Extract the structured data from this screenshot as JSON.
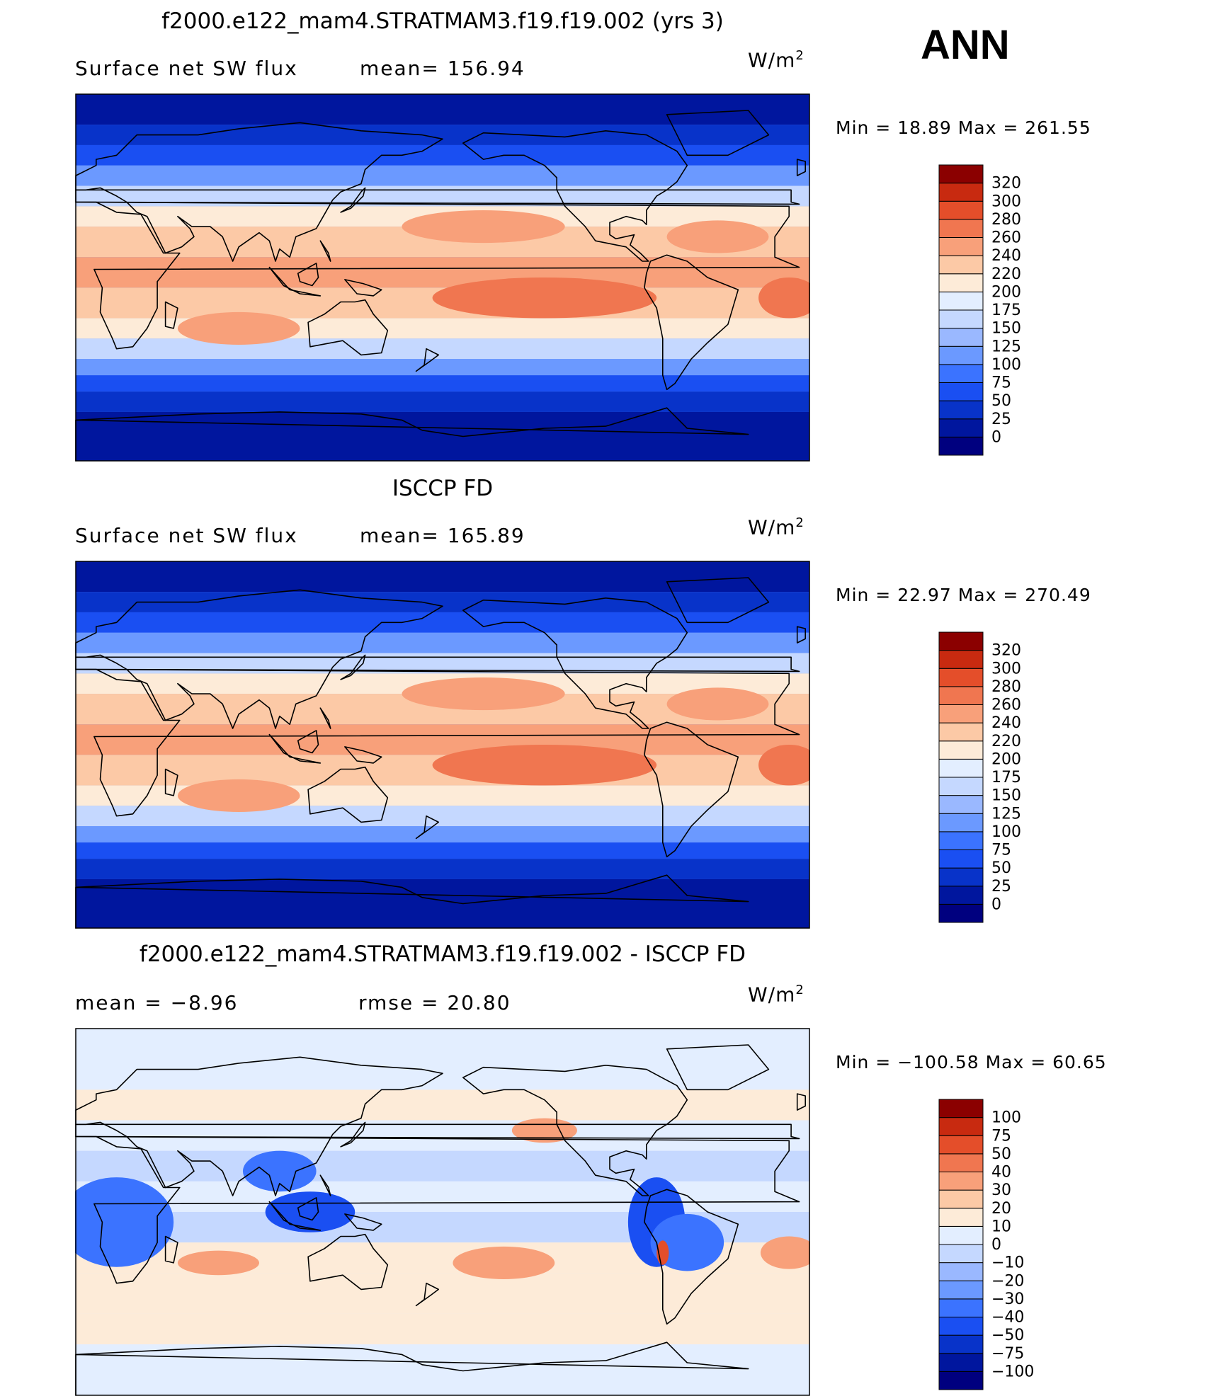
{
  "season": "ANN",
  "colors": {
    "abs_levels": [
      "#00007f",
      "#00169e",
      "#0833c9",
      "#1a4ff2",
      "#3b73ff",
      "#6b99ff",
      "#9ab8ff",
      "#c5d8ff",
      "#e3eeff",
      "#fdebd8",
      "#fcc9a6",
      "#f8a07a",
      "#f07650",
      "#e44e2a",
      "#c82a10",
      "#8b0000"
    ],
    "diff_levels": [
      "#00007f",
      "#00169e",
      "#0833c9",
      "#1a4ff2",
      "#3b73ff",
      "#6b99ff",
      "#9ab8ff",
      "#c5d8ff",
      "#e3eeff",
      "#fdebd8",
      "#fcc9a6",
      "#f8a07a",
      "#f07650",
      "#e44e2a",
      "#c82a10",
      "#8b0000"
    ],
    "coast": "#000000"
  },
  "panels": [
    {
      "title": "f2000.e122_mam4.STRATMAM3.f19.f19.002 (yrs 3)",
      "left_label": "Surface net SW flux",
      "center_label": "mean= 156.94",
      "units": "W/m",
      "units_sup": "2",
      "minmax": "Min =   18.89  Max  =  261.55",
      "colorbar_labels": [
        "320",
        "300",
        "280",
        "260",
        "240",
        "220",
        "200",
        "175",
        "150",
        "125",
        "100",
        "75",
        "50",
        "25",
        "0"
      ]
    },
    {
      "title": "ISCCP FD",
      "left_label": "Surface net SW flux",
      "center_label": "mean= 165.89",
      "units": "W/m",
      "units_sup": "2",
      "minmax": "Min =   22.97  Max  =  270.49",
      "colorbar_labels": [
        "320",
        "300",
        "280",
        "260",
        "240",
        "220",
        "200",
        "175",
        "150",
        "125",
        "100",
        "75",
        "50",
        "25",
        "0"
      ]
    },
    {
      "title": "f2000.e122_mam4.STRATMAM3.f19.f19.002 - ISCCP FD",
      "left_label": "mean =   −8.96",
      "center_label": "rmse =   20.80",
      "units": "W/m",
      "units_sup": "2",
      "minmax": "Min = −100.58  Max  =   60.65",
      "colorbar_labels": [
        "100",
        "75",
        "50",
        "40",
        "30",
        "20",
        "10",
        "0",
        "−10",
        "−20",
        "−30",
        "−40",
        "−50",
        "−75",
        "−100"
      ]
    }
  ]
}
